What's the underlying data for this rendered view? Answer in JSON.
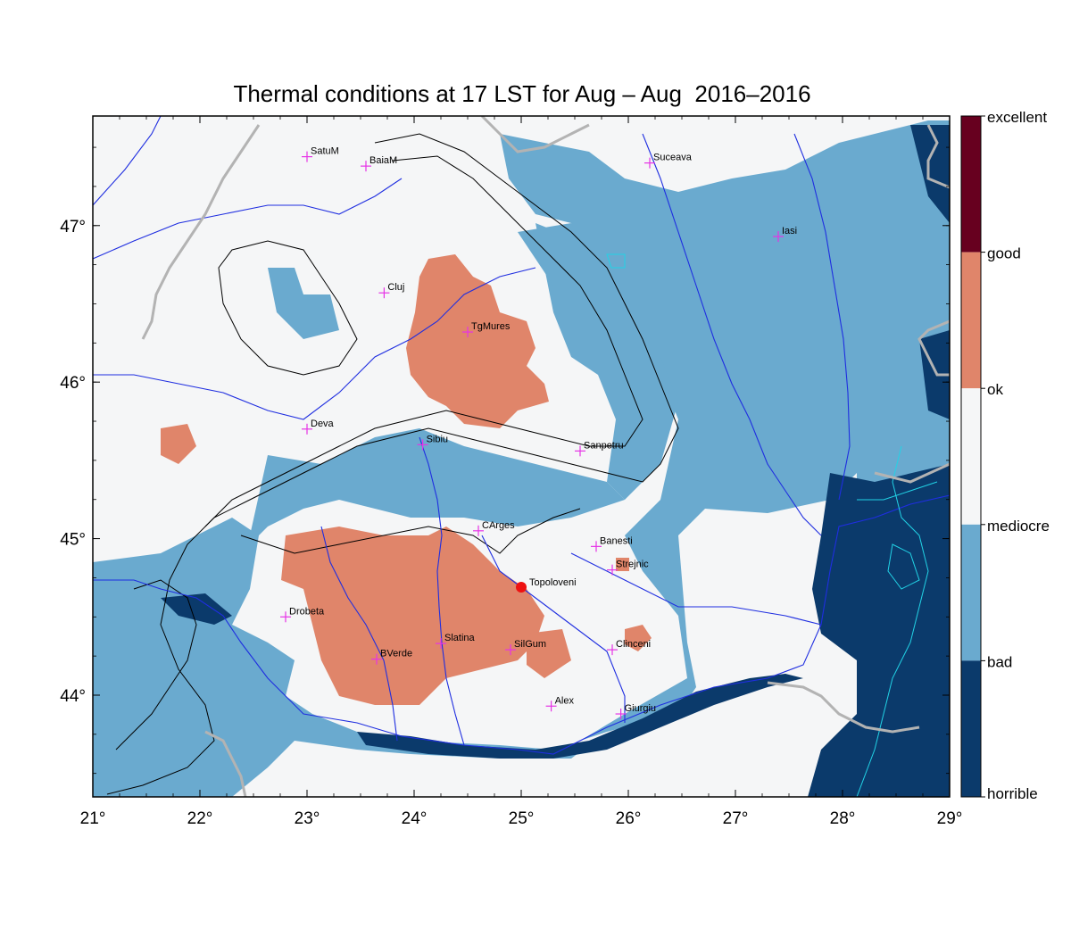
{
  "title": "Thermal conditions at 17 LST for Aug – Aug  2016–2016",
  "x_ticks": [
    "21°",
    "22°",
    "23°",
    "24°",
    "25°",
    "26°",
    "27°",
    "28°",
    "29°"
  ],
  "y_ticks": [
    "44°",
    "45°",
    "46°",
    "47°"
  ],
  "legend": [
    {
      "label": "excellent",
      "color": "#67001f"
    },
    {
      "label": "good",
      "color": "#e0856a"
    },
    {
      "label": "ok",
      "color": "#f5f6f7"
    },
    {
      "label": "mediocre",
      "color": "#6aaacf"
    },
    {
      "label": "bad",
      "color": "#0b3a6b"
    },
    {
      "label": "horrible",
      "color": ""
    }
  ],
  "colors": {
    "background": "#f5f6f7",
    "bad": "#6aaacf",
    "horrible": "#0b3a6b",
    "good": "#e0856a",
    "rivers": "#1f2ee0",
    "border": "#b3b3b3",
    "contours": "#000000",
    "lakes": "#22d3e6",
    "station_marker": "#e633e6",
    "highlight_marker": "#ee1111"
  },
  "chart_data": {
    "type": "map",
    "xlim": [
      21,
      29
    ],
    "ylim": [
      43.35,
      47.7
    ],
    "stations": [
      {
        "name": "SatuM",
        "lon": 23.0,
        "lat": 47.44
      },
      {
        "name": "BaiaM",
        "lon": 23.55,
        "lat": 47.38
      },
      {
        "name": "Suceava",
        "lon": 26.2,
        "lat": 47.4
      },
      {
        "name": "Iasi",
        "lon": 27.4,
        "lat": 46.93
      },
      {
        "name": "Cluj",
        "lon": 23.72,
        "lat": 46.57
      },
      {
        "name": "TgMures",
        "lon": 24.5,
        "lat": 46.32
      },
      {
        "name": "Deva",
        "lon": 23.0,
        "lat": 45.7
      },
      {
        "name": "Sibiu",
        "lon": 24.08,
        "lat": 45.6
      },
      {
        "name": "Sanpetru",
        "lon": 25.55,
        "lat": 45.56
      },
      {
        "name": "CArges",
        "lon": 24.6,
        "lat": 45.05
      },
      {
        "name": "Banesti",
        "lon": 25.7,
        "lat": 44.95
      },
      {
        "name": "Strejnic",
        "lon": 25.85,
        "lat": 44.8
      },
      {
        "name": "Drobeta",
        "lon": 22.8,
        "lat": 44.5
      },
      {
        "name": "Slatina",
        "lon": 24.25,
        "lat": 44.33
      },
      {
        "name": "SilGum",
        "lon": 24.9,
        "lat": 44.29
      },
      {
        "name": "Clinceni",
        "lon": 25.85,
        "lat": 44.29
      },
      {
        "name": "BVerde",
        "lon": 23.65,
        "lat": 44.23
      },
      {
        "name": "Alex",
        "lon": 25.28,
        "lat": 43.93
      },
      {
        "name": "Giurgiu",
        "lon": 25.93,
        "lat": 43.88
      }
    ],
    "highlight": {
      "name": "Topoloveni",
      "lon": 25.0,
      "lat": 44.69
    }
  }
}
